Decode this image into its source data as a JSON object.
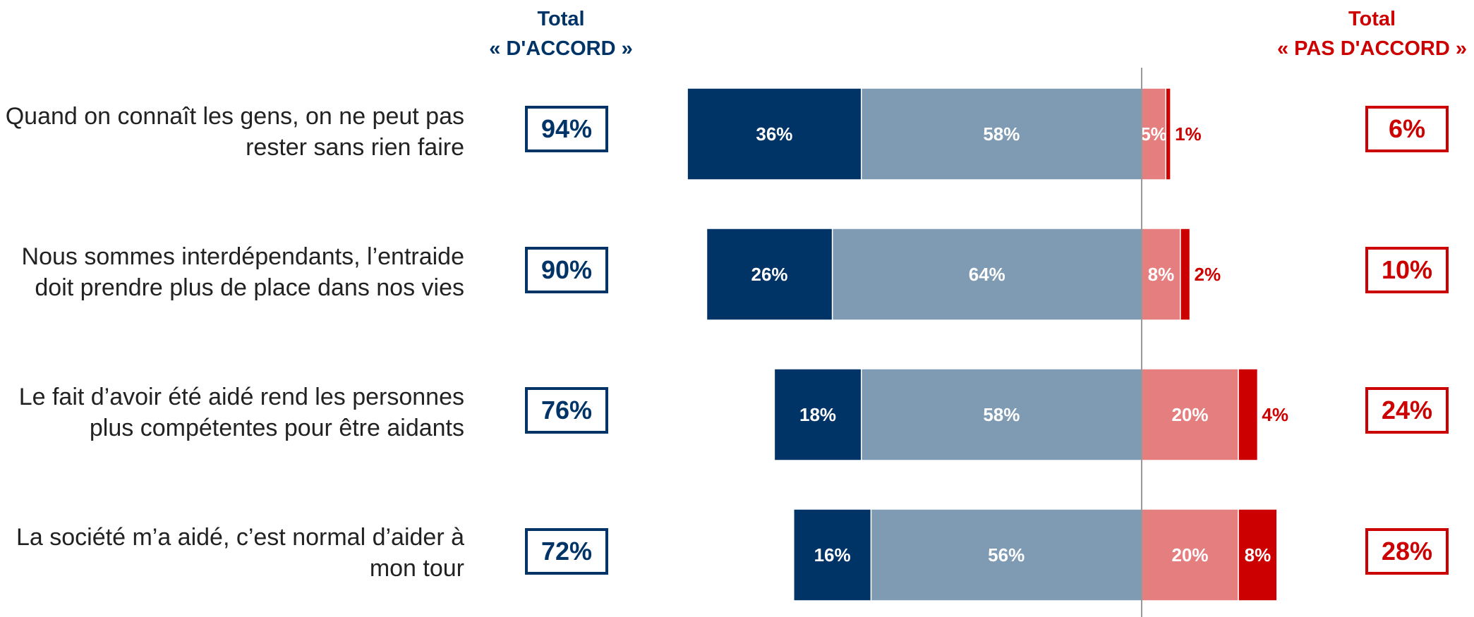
{
  "headers": {
    "agree_line1": "Total",
    "agree_line2": "« D'ACCORD »",
    "disagree_line1": "Total",
    "disagree_line2": "« PAS D'ACCORD »"
  },
  "rows": [
    {
      "line1": "Quand on connaît les gens, on ne peut pas",
      "line2": "rester sans rien faire",
      "total_agree": "94%",
      "total_disagree": "6%"
    },
    {
      "line1": "Nous sommes interdépendants, l’entraide",
      "line2": "doit prendre plus de place dans nos vies",
      "total_agree": "90%",
      "total_disagree": "10%"
    },
    {
      "line1": "Le fait d’avoir été aidé rend les personnes",
      "line2": "plus compétentes pour être aidants",
      "total_agree": "76%",
      "total_disagree": "24%"
    },
    {
      "line1": "La société m’a aidé, c’est normal d’aider à",
      "line2": "mon tour",
      "total_agree": "72%",
      "total_disagree": "28%"
    }
  ],
  "colors": {
    "strong_agree": "#003366",
    "agree": "#7f9bb3",
    "disagree": "#e57f7f",
    "strong_disagree": "#cc0000",
    "divider": "#999999"
  },
  "chart_data": {
    "type": "bar",
    "orientation": "horizontal-diverging",
    "categories": [
      "Quand on connaît les gens, on ne peut pas rester sans rien faire",
      "Nous sommes interdépendants, l’entraide doit prendre plus de place dans nos vies",
      "Le fait d’avoir été aidé rend les personnes plus compétentes pour être aidants",
      "La société m’a aidé, c’est normal d’aider à mon tour"
    ],
    "series": [
      {
        "values": [
          36,
          26,
          18,
          16
        ],
        "labels": [
          "36%",
          "26%",
          "18%",
          "16%"
        ],
        "side": "left",
        "color": "#003366"
      },
      {
        "values": [
          58,
          64,
          58,
          56
        ],
        "labels": [
          "58%",
          "64%",
          "58%",
          "56%"
        ],
        "side": "left",
        "color": "#7f9bb3"
      },
      {
        "values": [
          5,
          8,
          20,
          20
        ],
        "labels": [
          "5%",
          "8%",
          "20%",
          "20%"
        ],
        "side": "right",
        "color": "#e57f7f"
      },
      {
        "values": [
          1,
          2,
          4,
          8
        ],
        "labels": [
          "1%",
          "2%",
          "4%",
          "8%"
        ],
        "side": "right",
        "color": "#cc0000"
      }
    ],
    "totals_agree": [
      94,
      90,
      76,
      72
    ],
    "totals_disagree": [
      6,
      10,
      24,
      28
    ]
  }
}
